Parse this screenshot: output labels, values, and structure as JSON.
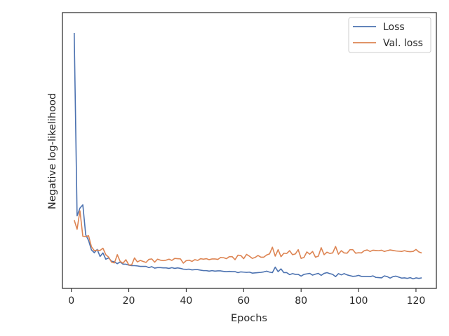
{
  "chart_data": {
    "type": "line",
    "xlabel": "Epochs",
    "ylabel": "Negative log-likelihood",
    "xlim": [
      -3.1,
      127.1
    ],
    "ylim": [
      0,
      1
    ],
    "y_ticks_shown": false,
    "x_ticks": [
      0,
      20,
      40,
      60,
      80,
      100,
      120
    ],
    "x_tick_labels": [
      "0",
      "20",
      "40",
      "60",
      "80",
      "100",
      "120"
    ],
    "legend_position": "top-right",
    "series": [
      {
        "name": "Loss",
        "color": "#4c72b0",
        "x": [
          1,
          2,
          3,
          4,
          5,
          6,
          7,
          8,
          9,
          10,
          11,
          12,
          13,
          14,
          15,
          16,
          17,
          18,
          19,
          20,
          21,
          22,
          23,
          24,
          25,
          26,
          27,
          28,
          29,
          30,
          31,
          32,
          33,
          34,
          35,
          36,
          37,
          38,
          39,
          40,
          41,
          42,
          43,
          44,
          45,
          46,
          47,
          48,
          49,
          50,
          51,
          52,
          53,
          54,
          55,
          56,
          57,
          58,
          59,
          60,
          61,
          62,
          63,
          64,
          65,
          66,
          67,
          68,
          69,
          70,
          71,
          72,
          73,
          74,
          75,
          76,
          77,
          78,
          79,
          80,
          81,
          82,
          83,
          84,
          85,
          86,
          87,
          88,
          89,
          90,
          91,
          92,
          93,
          94,
          95,
          96,
          97,
          98,
          99,
          100,
          101,
          102,
          103,
          104,
          105,
          106,
          107,
          108,
          109,
          110,
          111,
          112,
          113,
          114,
          115,
          116,
          117,
          118,
          119,
          120,
          121,
          122
        ],
        "y": [
          1.0,
          0.266,
          0.297,
          0.31,
          0.19,
          0.167,
          0.129,
          0.118,
          0.131,
          0.103,
          0.117,
          0.092,
          0.097,
          0.084,
          0.081,
          0.074,
          0.081,
          0.072,
          0.072,
          0.068,
          0.066,
          0.066,
          0.065,
          0.063,
          0.063,
          0.063,
          0.058,
          0.062,
          0.056,
          0.058,
          0.058,
          0.057,
          0.057,
          0.055,
          0.058,
          0.055,
          0.057,
          0.055,
          0.052,
          0.051,
          0.052,
          0.049,
          0.05,
          0.05,
          0.048,
          0.046,
          0.046,
          0.044,
          0.046,
          0.044,
          0.045,
          0.045,
          0.043,
          0.042,
          0.043,
          0.042,
          0.042,
          0.038,
          0.041,
          0.04,
          0.039,
          0.04,
          0.036,
          0.037,
          0.038,
          0.039,
          0.041,
          0.044,
          0.04,
          0.038,
          0.06,
          0.042,
          0.053,
          0.038,
          0.038,
          0.03,
          0.034,
          0.031,
          0.031,
          0.024,
          0.031,
          0.033,
          0.035,
          0.028,
          0.032,
          0.035,
          0.027,
          0.035,
          0.038,
          0.034,
          0.031,
          0.022,
          0.034,
          0.029,
          0.034,
          0.029,
          0.026,
          0.023,
          0.024,
          0.027,
          0.023,
          0.023,
          0.023,
          0.022,
          0.025,
          0.019,
          0.018,
          0.017,
          0.025,
          0.022,
          0.016,
          0.022,
          0.024,
          0.02,
          0.016,
          0.017,
          0.015,
          0.018,
          0.013,
          0.017,
          0.015,
          0.017
        ]
      },
      {
        "name": "Val. loss",
        "color": "#dd8452",
        "x": [
          1,
          2,
          3,
          4,
          5,
          6,
          7,
          8,
          9,
          10,
          11,
          12,
          13,
          14,
          15,
          16,
          17,
          18,
          19,
          20,
          21,
          22,
          23,
          24,
          25,
          26,
          27,
          28,
          29,
          30,
          31,
          32,
          33,
          34,
          35,
          36,
          37,
          38,
          39,
          40,
          41,
          42,
          43,
          44,
          45,
          46,
          47,
          48,
          49,
          50,
          51,
          52,
          53,
          54,
          55,
          56,
          57,
          58,
          59,
          60,
          61,
          62,
          63,
          64,
          65,
          66,
          67,
          68,
          69,
          70,
          71,
          72,
          73,
          74,
          75,
          76,
          77,
          78,
          79,
          80,
          81,
          82,
          83,
          84,
          85,
          86,
          87,
          88,
          89,
          90,
          91,
          92,
          93,
          94,
          95,
          96,
          97,
          98,
          99,
          100,
          101,
          102,
          103,
          104,
          105,
          106,
          107,
          108,
          109,
          110,
          111,
          112,
          113,
          114,
          115,
          116,
          117,
          118,
          119,
          120,
          121,
          122
        ],
        "y": [
          0.249,
          0.212,
          0.286,
          0.184,
          0.183,
          0.186,
          0.142,
          0.126,
          0.128,
          0.127,
          0.136,
          0.11,
          0.1,
          0.08,
          0.077,
          0.11,
          0.083,
          0.076,
          0.09,
          0.069,
          0.069,
          0.097,
          0.081,
          0.087,
          0.083,
          0.079,
          0.091,
          0.093,
          0.08,
          0.092,
          0.088,
          0.086,
          0.088,
          0.092,
          0.087,
          0.095,
          0.094,
          0.093,
          0.076,
          0.086,
          0.088,
          0.083,
          0.09,
          0.087,
          0.094,
          0.092,
          0.094,
          0.09,
          0.093,
          0.093,
          0.091,
          0.099,
          0.098,
          0.094,
          0.102,
          0.102,
          0.09,
          0.108,
          0.107,
          0.094,
          0.111,
          0.104,
          0.095,
          0.099,
          0.107,
          0.1,
          0.1,
          0.109,
          0.113,
          0.14,
          0.104,
          0.13,
          0.102,
          0.116,
          0.115,
          0.126,
          0.11,
          0.113,
          0.13,
          0.095,
          0.099,
          0.121,
          0.112,
          0.123,
          0.1,
          0.104,
          0.138,
          0.11,
          0.12,
          0.115,
          0.117,
          0.143,
          0.112,
          0.126,
          0.117,
          0.116,
          0.13,
          0.13,
          0.116,
          0.118,
          0.117,
          0.126,
          0.129,
          0.123,
          0.128,
          0.127,
          0.126,
          0.128,
          0.123,
          0.126,
          0.129,
          0.127,
          0.125,
          0.124,
          0.123,
          0.126,
          0.123,
          0.122,
          0.123,
          0.131,
          0.121,
          0.117
        ]
      }
    ]
  }
}
